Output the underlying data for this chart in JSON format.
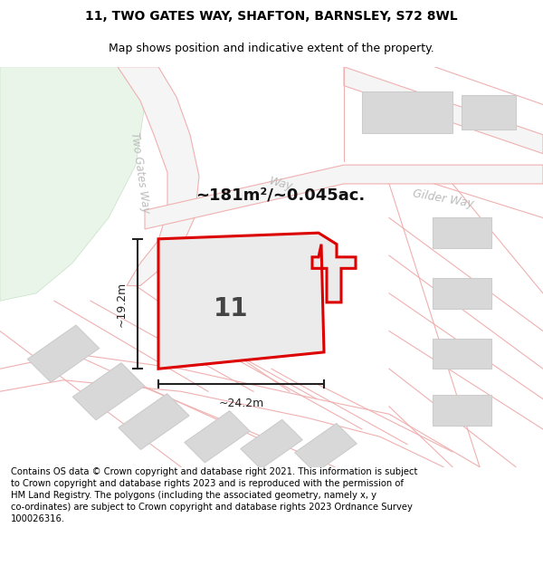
{
  "title_line1": "11, TWO GATES WAY, SHAFTON, BARNSLEY, S72 8WL",
  "title_line2": "Map shows position and indicative extent of the property.",
  "area_text": "~181m²/~0.045ac.",
  "label_11": "11",
  "dim_vertical": "~19.2m",
  "dim_horizontal": "~24.2m",
  "street_two_gates": "Two Gates Way",
  "street_gilder": "Gilder Way",
  "street_way": "Way",
  "footer": "Contains OS data © Crown copyright and database right 2021. This information is subject\nto Crown copyright and database rights 2023 and is reproduced with the permission of\nHM Land Registry. The polygons (including the associated geometry, namely x, y\nco-ordinates) are subject to Crown copyright and database rights 2023 Ordnance Survey\n100026316.",
  "bg_color": "#ffffff",
  "map_bg": "#ffffff",
  "plot_fill": "#e8e8e8",
  "plot_edge": "#dd0000",
  "road_line_color": "#f0b0b0",
  "road_fill_color": "#f8f8f8",
  "building_fill": "#d8d8d8",
  "building_edge": "#cccccc",
  "text_color": "#000000",
  "dim_line_color": "#222222",
  "green_area": "#e8f5e8",
  "street_color": "#bbbbbb",
  "title_fontsize": 10,
  "subtitle_fontsize": 9,
  "footer_fontsize": 7.2
}
